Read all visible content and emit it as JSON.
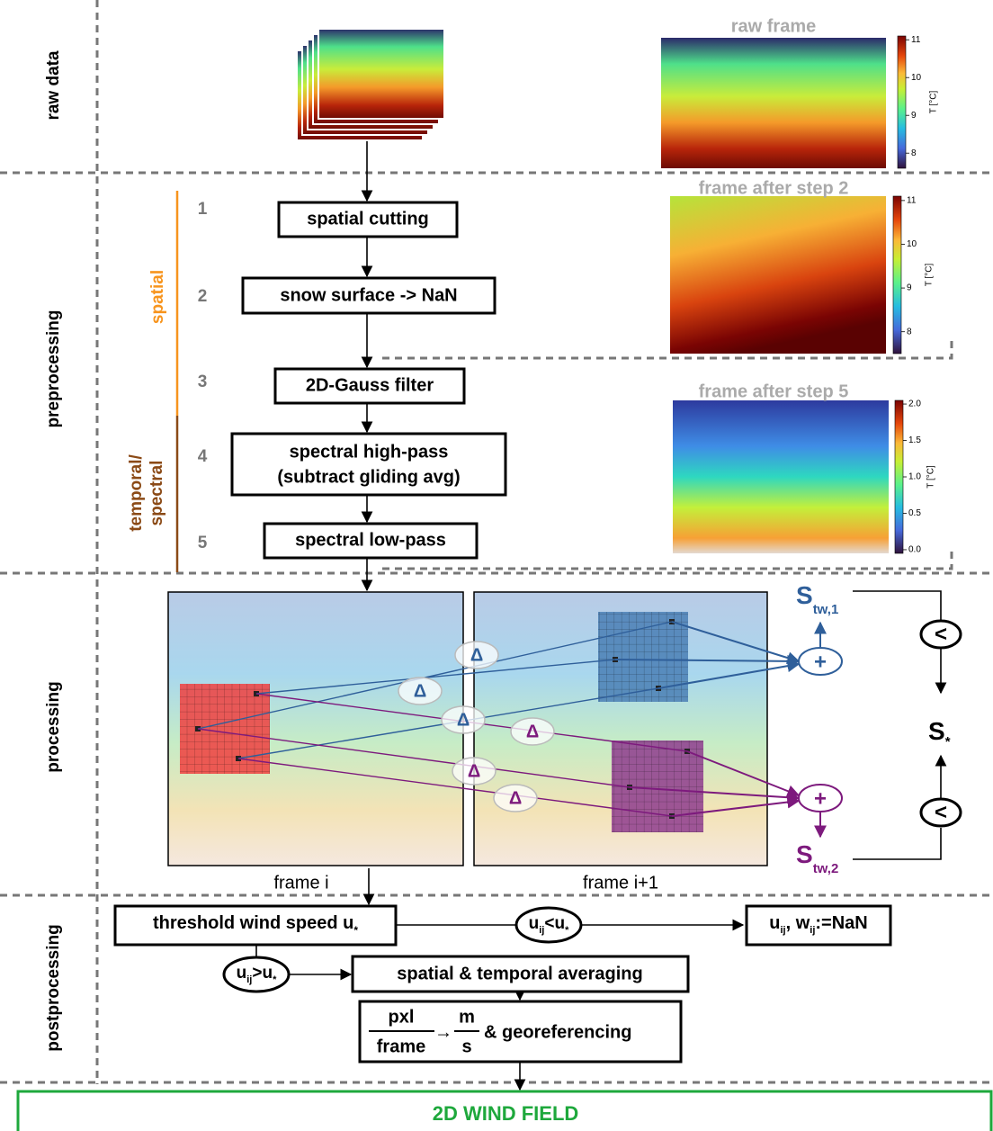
{
  "sections": [
    "raw data",
    "preprocessing",
    "processing",
    "postprocessing"
  ],
  "groups": {
    "spatial": "spatial",
    "temporal": [
      "temporal/",
      "spectral"
    ]
  },
  "steps": [
    {
      "number": 1,
      "label": [
        "spatial cutting"
      ]
    },
    {
      "number": 2,
      "label": [
        "snow surface -> NaN"
      ]
    },
    {
      "number": 3,
      "label": [
        "2D-Gauss filter"
      ]
    },
    {
      "number": 4,
      "label": [
        "spectral high-pass",
        "(subtract gliding avg)"
      ]
    },
    {
      "number": 5,
      "label": [
        "spectral low-pass"
      ]
    }
  ],
  "panels": [
    {
      "title": "raw frame",
      "colorbar": {
        "label": "T [°C]",
        "range": [
          7.6,
          11.1
        ],
        "ticks": [
          8,
          9,
          10,
          11
        ]
      }
    },
    {
      "title": "frame after step 2",
      "colorbar": {
        "label": "T [°C]",
        "range": [
          7.5,
          11.1
        ],
        "ticks": [
          8,
          9,
          10,
          11
        ]
      }
    },
    {
      "title": "frame after step 5",
      "colorbar": {
        "label": "T [°C]",
        "range": [
          -0.05,
          2.05
        ],
        "ticks": [
          {
            "value": 0,
            "label": "0.0"
          },
          {
            "value": 0.5,
            "label": "0.5"
          },
          {
            "value": 1,
            "label": "1.0"
          },
          {
            "value": 1.5,
            "label": "1.5"
          },
          {
            "value": 2,
            "label": "2.0"
          }
        ]
      }
    }
  ],
  "processing": {
    "frames": [
      "frame i",
      "frame i+1"
    ],
    "deltas": [
      "Δ",
      "Δ",
      "Δ",
      "Δ",
      "Δ",
      "Δ"
    ],
    "sums": [
      {
        "symbol": "+",
        "result": [
          "S",
          "tw,1"
        ]
      },
      {
        "symbol": "+",
        "result": [
          "S",
          "tw,2"
        ]
      }
    ],
    "comparisons": [
      "<",
      "<"
    ],
    "result": [
      "S",
      "*"
    ]
  },
  "postprocessing": {
    "threshold": [
      "threshold wind speed u",
      "*"
    ],
    "below": [
      "u",
      "ij",
      "<u",
      "*"
    ],
    "invalid": [
      "u",
      "ij",
      ", w",
      "ij",
      ":=NaN"
    ],
    "above": [
      "u",
      "ij",
      ">u",
      "*"
    ],
    "averaging": "spatial & temporal averaging",
    "conversion": {
      "from": [
        "pxl",
        "frame"
      ],
      "arrow": "→",
      "to": [
        "m",
        "s"
      ],
      "rest": "& georeferencing"
    }
  },
  "output": "2D WIND FIELD"
}
